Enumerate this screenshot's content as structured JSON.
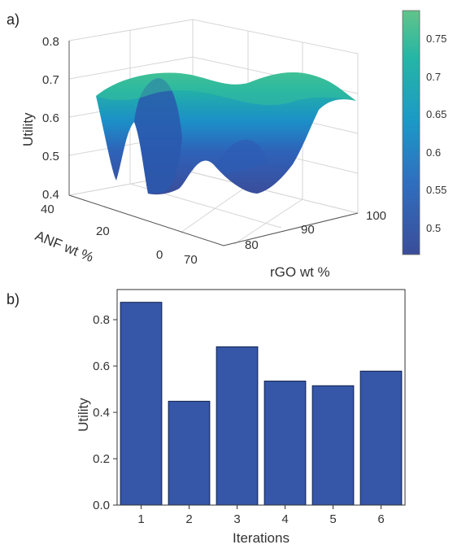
{
  "chart_data": [
    {
      "panel_label": "a)",
      "type": "surface3d",
      "zlabel": "Utility",
      "xlabel": "rGO wt %",
      "ylabel": "ANF wt %",
      "x_ticks": [
        "70",
        "80",
        "90",
        "100"
      ],
      "y_ticks": [
        "40",
        "20",
        "0"
      ],
      "z_ticks": [
        "0.4",
        "0.5",
        "0.6",
        "0.7",
        "0.8"
      ],
      "zlim": [
        0.4,
        0.8
      ],
      "xlim": [
        70,
        100
      ],
      "ylim": [
        0,
        40
      ],
      "colorbar": {
        "ticks": [
          "0.75",
          "0.7",
          "0.65",
          "0.6",
          "0.55",
          "0.5"
        ],
        "range": [
          0.49,
          0.79
        ],
        "colors": [
          "#3b4d9a",
          "#2f6fc0",
          "#1c99c7",
          "#25b5a6",
          "#60c48a"
        ]
      }
    },
    {
      "panel_label": "b)",
      "type": "bar",
      "categories": [
        "1",
        "2",
        "3",
        "4",
        "5",
        "6"
      ],
      "values": [
        0.875,
        0.448,
        0.683,
        0.535,
        0.515,
        0.578
      ],
      "xlabel": "Iterations",
      "ylabel": "Utility",
      "ylim": [
        0,
        0.93
      ],
      "y_ticks": [
        "0.0",
        "0.2",
        "0.4",
        "0.6",
        "0.8"
      ],
      "bar_color": "#3657a7"
    }
  ]
}
